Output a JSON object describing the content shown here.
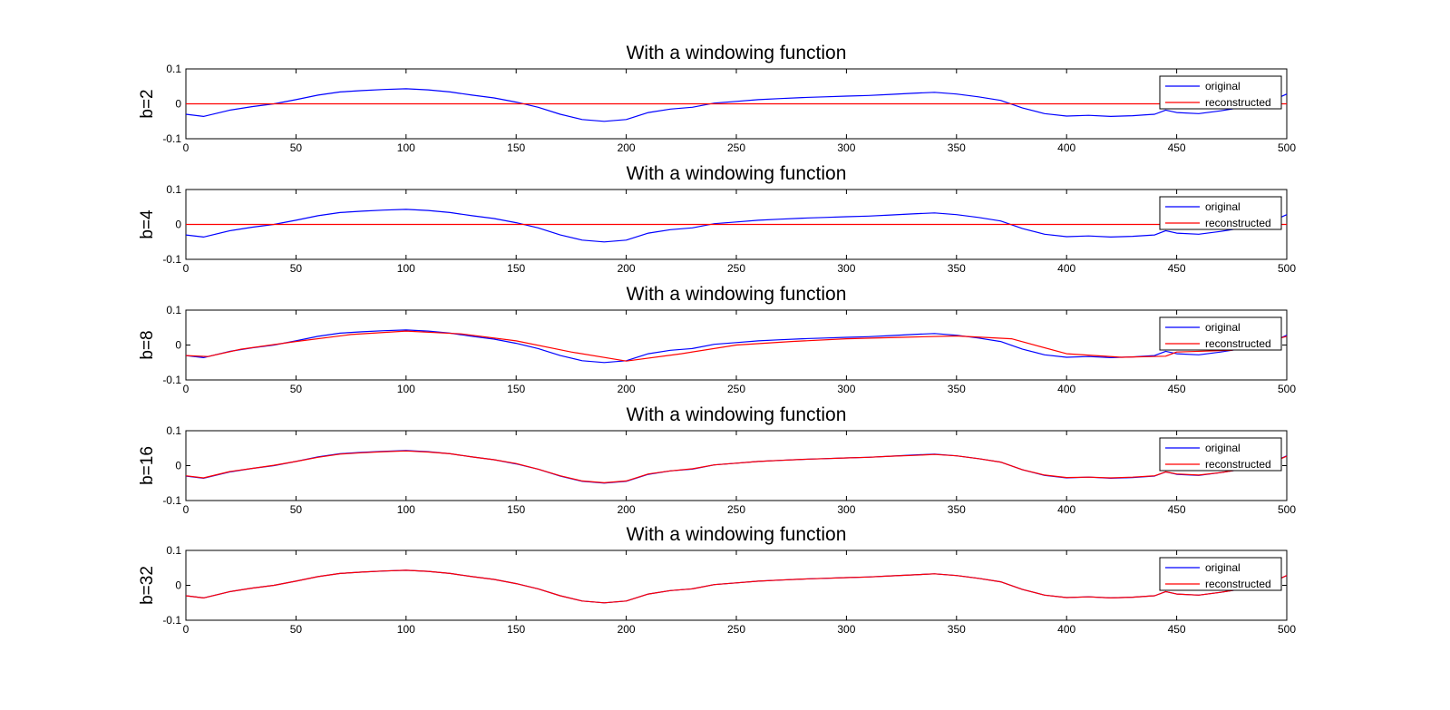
{
  "figure": {
    "colors": {
      "original": "#0000ff",
      "reconstructed": "#ff0000",
      "axes": "#000000",
      "background": "#ffffff"
    }
  },
  "chart_data": [
    {
      "type": "line",
      "title": "With a windowing function",
      "ylabel": "b=2",
      "xlim": [
        0,
        500
      ],
      "ylim": [
        -0.1,
        0.1
      ],
      "xticks": [
        0,
        50,
        100,
        150,
        200,
        250,
        300,
        350,
        400,
        450,
        500
      ],
      "yticks": [
        0.1,
        0,
        -0.1
      ],
      "ytick_labels": [
        "0.1",
        "0",
        "-0.1"
      ],
      "grid": false,
      "legend": {
        "location": "top-right",
        "entries": [
          "original",
          "reconstructed"
        ]
      },
      "series": [
        {
          "name": "original",
          "color": "#0000ff",
          "x": [
            0,
            8,
            20,
            30,
            40,
            50,
            60,
            70,
            80,
            90,
            100,
            110,
            120,
            130,
            140,
            150,
            160,
            170,
            180,
            190,
            200,
            210,
            220,
            230,
            240,
            250,
            260,
            270,
            280,
            290,
            300,
            310,
            320,
            330,
            340,
            350,
            360,
            370,
            380,
            390,
            400,
            410,
            420,
            430,
            440,
            445,
            450,
            460,
            470,
            480,
            490,
            500
          ],
          "y": [
            -0.03,
            -0.036,
            -0.018,
            -0.008,
            0.0,
            0.012,
            0.025,
            0.034,
            0.038,
            0.041,
            0.043,
            0.04,
            0.034,
            0.025,
            0.017,
            0.005,
            -0.01,
            -0.03,
            -0.045,
            -0.05,
            -0.045,
            -0.025,
            -0.015,
            -0.01,
            0.002,
            0.007,
            0.012,
            0.015,
            0.018,
            0.02,
            0.022,
            0.024,
            0.027,
            0.03,
            0.033,
            0.028,
            0.02,
            0.01,
            -0.012,
            -0.028,
            -0.035,
            -0.033,
            -0.036,
            -0.034,
            -0.03,
            -0.018,
            -0.025,
            -0.028,
            -0.02,
            -0.01,
            0.0,
            0.028
          ]
        },
        {
          "name": "reconstructed",
          "color": "#ff0000",
          "x": [
            0,
            500
          ],
          "y": [
            0,
            0
          ]
        }
      ]
    },
    {
      "type": "line",
      "title": "With a windowing function",
      "ylabel": "b=4",
      "xlim": [
        0,
        500
      ],
      "ylim": [
        -0.1,
        0.1
      ],
      "xticks": [
        0,
        50,
        100,
        150,
        200,
        250,
        300,
        350,
        400,
        450,
        500
      ],
      "yticks": [
        0.1,
        0,
        -0.1
      ],
      "ytick_labels": [
        "0.1",
        "0",
        "-0.1"
      ],
      "grid": false,
      "legend": {
        "location": "top-right",
        "entries": [
          "original",
          "reconstructed"
        ]
      },
      "series": [
        {
          "name": "original",
          "color": "#0000ff",
          "x": [
            0,
            8,
            20,
            30,
            40,
            50,
            60,
            70,
            80,
            90,
            100,
            110,
            120,
            130,
            140,
            150,
            160,
            170,
            180,
            190,
            200,
            210,
            220,
            230,
            240,
            250,
            260,
            270,
            280,
            290,
            300,
            310,
            320,
            330,
            340,
            350,
            360,
            370,
            380,
            390,
            400,
            410,
            420,
            430,
            440,
            445,
            450,
            460,
            470,
            480,
            490,
            500
          ],
          "y": [
            -0.03,
            -0.036,
            -0.018,
            -0.008,
            0.0,
            0.012,
            0.025,
            0.034,
            0.038,
            0.041,
            0.043,
            0.04,
            0.034,
            0.025,
            0.017,
            0.005,
            -0.01,
            -0.03,
            -0.045,
            -0.05,
            -0.045,
            -0.025,
            -0.015,
            -0.01,
            0.002,
            0.007,
            0.012,
            0.015,
            0.018,
            0.02,
            0.022,
            0.024,
            0.027,
            0.03,
            0.033,
            0.028,
            0.02,
            0.01,
            -0.012,
            -0.028,
            -0.035,
            -0.033,
            -0.036,
            -0.034,
            -0.03,
            -0.018,
            -0.025,
            -0.028,
            -0.02,
            -0.01,
            0.0,
            0.028
          ]
        },
        {
          "name": "reconstructed",
          "color": "#ff0000",
          "x": [
            0,
            500
          ],
          "y": [
            0,
            0
          ]
        }
      ]
    },
    {
      "type": "line",
      "title": "With a windowing function",
      "ylabel": "b=8",
      "xlim": [
        0,
        500
      ],
      "ylim": [
        -0.1,
        0.1
      ],
      "xticks": [
        0,
        50,
        100,
        150,
        200,
        250,
        300,
        350,
        400,
        450,
        500
      ],
      "yticks": [
        0.1,
        0,
        -0.1
      ],
      "ytick_labels": [
        "0.1",
        "0",
        "-0.1"
      ],
      "grid": false,
      "legend": {
        "location": "top-right",
        "entries": [
          "original",
          "reconstructed"
        ]
      },
      "series": [
        {
          "name": "original",
          "color": "#0000ff",
          "x": [
            0,
            8,
            20,
            30,
            40,
            50,
            60,
            70,
            80,
            90,
            100,
            110,
            120,
            130,
            140,
            150,
            160,
            170,
            180,
            190,
            200,
            210,
            220,
            230,
            240,
            250,
            260,
            270,
            280,
            290,
            300,
            310,
            320,
            330,
            340,
            350,
            360,
            370,
            380,
            390,
            400,
            410,
            420,
            430,
            440,
            445,
            450,
            460,
            470,
            480,
            490,
            500
          ],
          "y": [
            -0.03,
            -0.036,
            -0.018,
            -0.008,
            0.0,
            0.012,
            0.025,
            0.034,
            0.038,
            0.041,
            0.043,
            0.04,
            0.034,
            0.025,
            0.017,
            0.005,
            -0.01,
            -0.03,
            -0.045,
            -0.05,
            -0.045,
            -0.025,
            -0.015,
            -0.01,
            0.002,
            0.007,
            0.012,
            0.015,
            0.018,
            0.02,
            0.022,
            0.024,
            0.027,
            0.03,
            0.033,
            0.028,
            0.02,
            0.01,
            -0.012,
            -0.028,
            -0.035,
            -0.033,
            -0.036,
            -0.034,
            -0.03,
            -0.018,
            -0.025,
            -0.028,
            -0.02,
            -0.01,
            0.0,
            0.028
          ]
        },
        {
          "name": "reconstructed",
          "color": "#ff0000",
          "x": [
            0,
            10,
            25,
            50,
            75,
            100,
            125,
            150,
            175,
            200,
            225,
            250,
            275,
            300,
            325,
            350,
            375,
            400,
            425,
            445,
            450,
            475,
            500
          ],
          "y": [
            -0.03,
            -0.033,
            -0.012,
            0.01,
            0.03,
            0.04,
            0.032,
            0.012,
            -0.02,
            -0.046,
            -0.025,
            0.0,
            0.01,
            0.018,
            0.022,
            0.026,
            0.018,
            -0.025,
            -0.035,
            -0.032,
            -0.02,
            -0.015,
            0.025
          ]
        }
      ]
    },
    {
      "type": "line",
      "title": "With a windowing function",
      "ylabel": "b=16",
      "xlim": [
        0,
        500
      ],
      "ylim": [
        -0.1,
        0.1
      ],
      "xticks": [
        0,
        50,
        100,
        150,
        200,
        250,
        300,
        350,
        400,
        450,
        500
      ],
      "yticks": [
        0.1,
        0,
        -0.1
      ],
      "ytick_labels": [
        "0.1",
        "0",
        "-0.1"
      ],
      "grid": false,
      "legend": {
        "location": "top-right",
        "entries": [
          "original",
          "reconstructed"
        ]
      },
      "series": [
        {
          "name": "original",
          "color": "#0000ff",
          "x": [
            0,
            8,
            20,
            30,
            40,
            50,
            60,
            70,
            80,
            90,
            100,
            110,
            120,
            130,
            140,
            150,
            160,
            170,
            180,
            190,
            200,
            210,
            220,
            230,
            240,
            250,
            260,
            270,
            280,
            290,
            300,
            310,
            320,
            330,
            340,
            350,
            360,
            370,
            380,
            390,
            400,
            410,
            420,
            430,
            440,
            445,
            450,
            460,
            470,
            480,
            490,
            500
          ],
          "y": [
            -0.03,
            -0.036,
            -0.018,
            -0.008,
            0.0,
            0.012,
            0.025,
            0.034,
            0.038,
            0.041,
            0.043,
            0.04,
            0.034,
            0.025,
            0.017,
            0.005,
            -0.01,
            -0.03,
            -0.045,
            -0.05,
            -0.045,
            -0.025,
            -0.015,
            -0.01,
            0.002,
            0.007,
            0.012,
            0.015,
            0.018,
            0.02,
            0.022,
            0.024,
            0.027,
            0.03,
            0.033,
            0.028,
            0.02,
            0.01,
            -0.012,
            -0.028,
            -0.035,
            -0.033,
            -0.036,
            -0.034,
            -0.03,
            -0.018,
            -0.025,
            -0.028,
            -0.02,
            -0.01,
            0.0,
            0.028
          ]
        },
        {
          "name": "reconstructed",
          "color": "#ff0000",
          "x": [
            0,
            8,
            20,
            30,
            40,
            50,
            60,
            70,
            80,
            90,
            100,
            110,
            120,
            130,
            140,
            150,
            160,
            170,
            180,
            190,
            200,
            210,
            220,
            230,
            240,
            250,
            260,
            270,
            280,
            290,
            300,
            310,
            320,
            330,
            340,
            350,
            360,
            370,
            380,
            390,
            400,
            410,
            420,
            430,
            440,
            445,
            450,
            460,
            470,
            480,
            490,
            500
          ],
          "y": [
            -0.029,
            -0.035,
            -0.017,
            -0.008,
            0.001,
            0.012,
            0.024,
            0.033,
            0.037,
            0.04,
            0.042,
            0.039,
            0.034,
            0.025,
            0.017,
            0.006,
            -0.01,
            -0.029,
            -0.044,
            -0.049,
            -0.044,
            -0.024,
            -0.015,
            -0.009,
            0.002,
            0.007,
            0.012,
            0.015,
            0.018,
            0.02,
            0.022,
            0.024,
            0.027,
            0.029,
            0.032,
            0.028,
            0.02,
            0.01,
            -0.012,
            -0.027,
            -0.034,
            -0.033,
            -0.035,
            -0.033,
            -0.029,
            -0.018,
            -0.024,
            -0.027,
            -0.02,
            -0.01,
            0.0,
            0.027
          ]
        }
      ]
    },
    {
      "type": "line",
      "title": "With a windowing function",
      "ylabel": "b=32",
      "xlim": [
        0,
        500
      ],
      "ylim": [
        -0.1,
        0.1
      ],
      "xticks": [
        0,
        50,
        100,
        150,
        200,
        250,
        300,
        350,
        400,
        450,
        500
      ],
      "yticks": [
        0.1,
        0,
        -0.1
      ],
      "ytick_labels": [
        "0.1",
        "0",
        "-0.1"
      ],
      "grid": false,
      "legend": {
        "location": "top-right",
        "entries": [
          "original",
          "reconstructed"
        ]
      },
      "series": [
        {
          "name": "original",
          "color": "#0000ff",
          "x": [
            0,
            8,
            20,
            30,
            40,
            50,
            60,
            70,
            80,
            90,
            100,
            110,
            120,
            130,
            140,
            150,
            160,
            170,
            180,
            190,
            200,
            210,
            220,
            230,
            240,
            250,
            260,
            270,
            280,
            290,
            300,
            310,
            320,
            330,
            340,
            350,
            360,
            370,
            380,
            390,
            400,
            410,
            420,
            430,
            440,
            445,
            450,
            460,
            470,
            480,
            490,
            500
          ],
          "y": [
            -0.03,
            -0.036,
            -0.018,
            -0.008,
            0.0,
            0.012,
            0.025,
            0.034,
            0.038,
            0.041,
            0.043,
            0.04,
            0.034,
            0.025,
            0.017,
            0.005,
            -0.01,
            -0.03,
            -0.045,
            -0.05,
            -0.045,
            -0.025,
            -0.015,
            -0.01,
            0.002,
            0.007,
            0.012,
            0.015,
            0.018,
            0.02,
            0.022,
            0.024,
            0.027,
            0.03,
            0.033,
            0.028,
            0.02,
            0.01,
            -0.012,
            -0.028,
            -0.035,
            -0.033,
            -0.036,
            -0.034,
            -0.03,
            -0.018,
            -0.025,
            -0.028,
            -0.02,
            -0.01,
            0.0,
            0.028
          ]
        },
        {
          "name": "reconstructed",
          "color": "#ff0000",
          "x": [
            0,
            8,
            20,
            30,
            40,
            50,
            60,
            70,
            80,
            90,
            100,
            110,
            120,
            130,
            140,
            150,
            160,
            170,
            180,
            190,
            200,
            210,
            220,
            230,
            240,
            250,
            260,
            270,
            280,
            290,
            300,
            310,
            320,
            330,
            340,
            350,
            360,
            370,
            380,
            390,
            400,
            410,
            420,
            430,
            440,
            445,
            450,
            460,
            470,
            480,
            490,
            500
          ],
          "y": [
            -0.03,
            -0.036,
            -0.018,
            -0.008,
            0.0,
            0.012,
            0.025,
            0.034,
            0.038,
            0.041,
            0.043,
            0.04,
            0.034,
            0.025,
            0.017,
            0.005,
            -0.01,
            -0.03,
            -0.045,
            -0.05,
            -0.045,
            -0.025,
            -0.015,
            -0.01,
            0.002,
            0.007,
            0.012,
            0.015,
            0.018,
            0.02,
            0.022,
            0.024,
            0.027,
            0.03,
            0.033,
            0.028,
            0.02,
            0.01,
            -0.012,
            -0.028,
            -0.035,
            -0.033,
            -0.036,
            -0.034,
            -0.03,
            -0.018,
            -0.025,
            -0.028,
            -0.02,
            -0.01,
            0.0,
            0.028
          ]
        }
      ]
    }
  ]
}
